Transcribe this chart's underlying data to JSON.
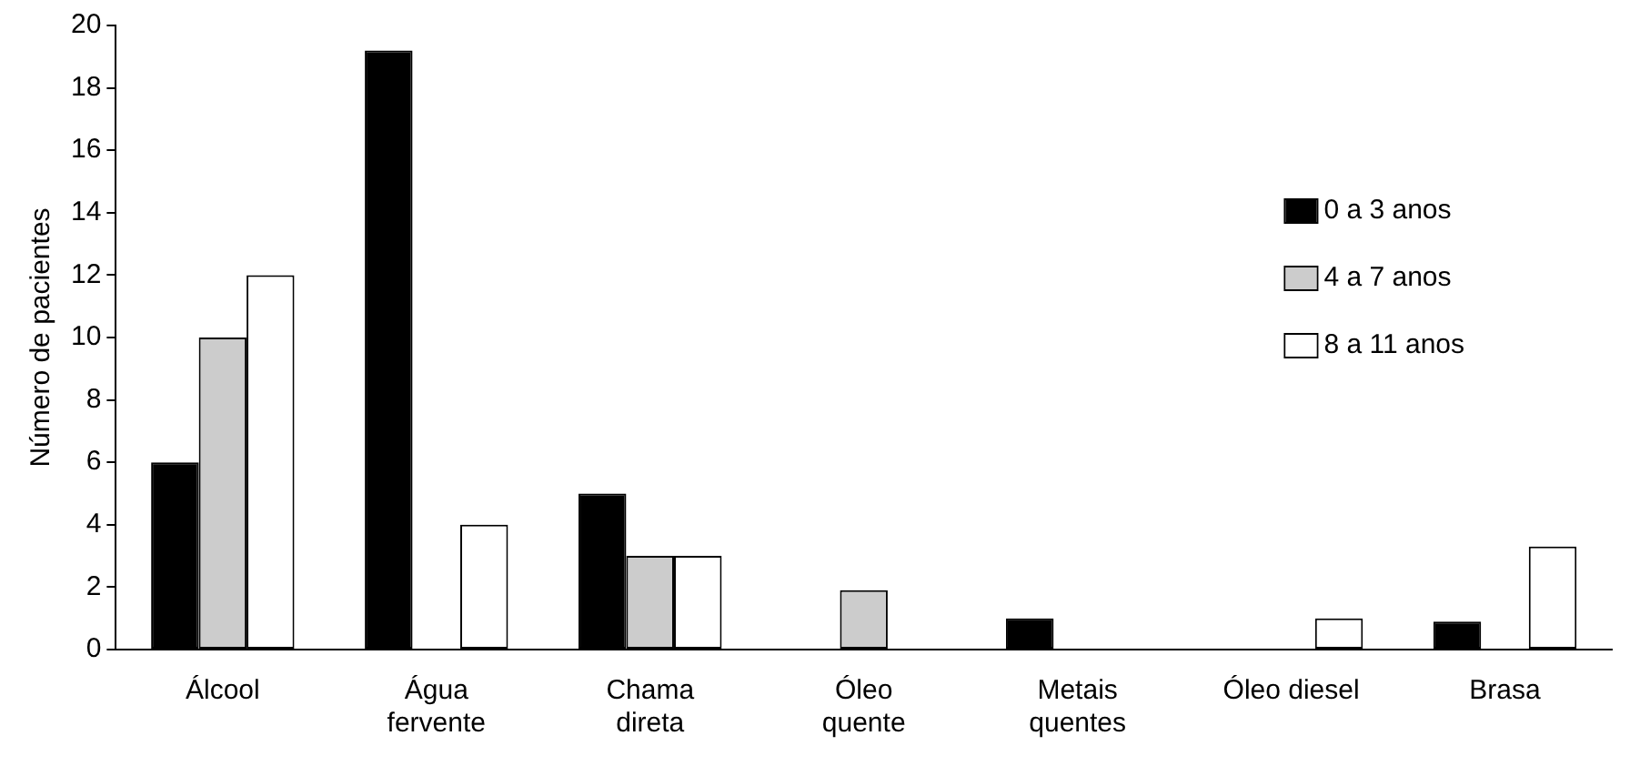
{
  "chart_data": {
    "type": "bar",
    "ylabel": "Número de pacientes",
    "categories": [
      "Álcool",
      "Água fervente",
      "Chama direta",
      "Óleo quente",
      "Metais quentes",
      "Óleo diesel",
      "Brasa"
    ],
    "series": [
      {
        "name": "0 a 3 anos",
        "color": "#000000",
        "values": [
          6,
          19.2,
          5,
          0,
          1,
          0,
          0.9
        ]
      },
      {
        "name": "4 a 7 anos",
        "color": "#cccccc",
        "values": [
          10,
          0,
          3,
          1.9,
          0,
          0,
          0
        ]
      },
      {
        "name": "8 a 11 anos",
        "color": "#ffffff",
        "values": [
          12,
          4,
          3,
          0,
          0,
          1,
          3.3
        ]
      }
    ],
    "ylim": [
      0,
      20
    ],
    "yticks": [
      0,
      2,
      4,
      6,
      8,
      10,
      12,
      14,
      16,
      18,
      20
    ],
    "grid": false,
    "legend": "top right"
  }
}
